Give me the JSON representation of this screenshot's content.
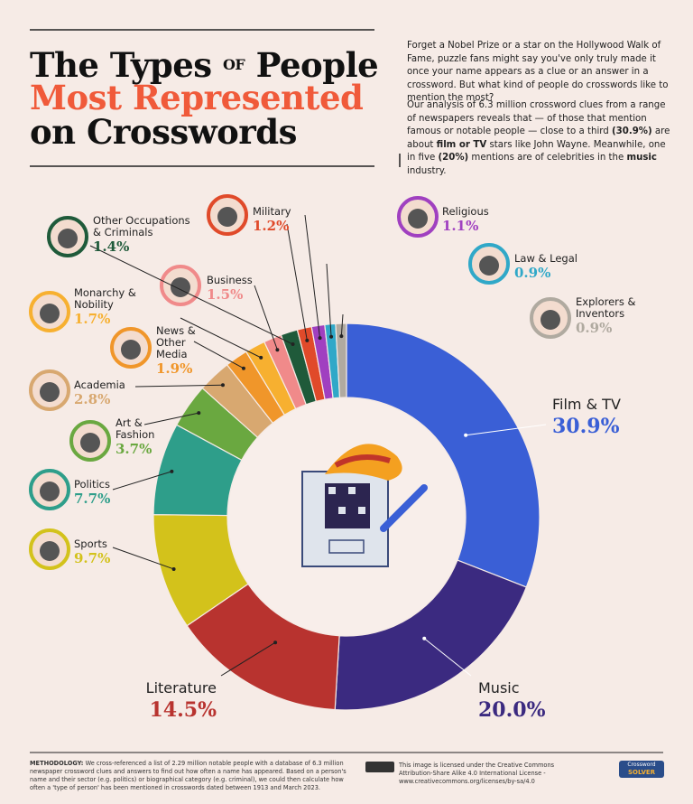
{
  "title": {
    "line1a": "The Types",
    "line1b": "OF",
    "line1c": "People",
    "line2": "Most Represented",
    "line3": "on Crosswords"
  },
  "intro": {
    "paragraph1": "Forget a Nobel Prize or a star on the Hollywood Walk of Fame, puzzle fans might say you've only truly made it once your name appears as a clue or an answer in a crossword. But what kind of people do crosswords like to mention the most?",
    "paragraph2": [
      "Our analysis of 6.3 million crossword clues from a range of newspapers reveals that — of those that mention famous or notable people — close to a third ",
      "(30.9%)",
      " are about ",
      "film or TV",
      " stars like John Wayne. Meanwhile, one in five ",
      "(20%)",
      " mentions are of celebrities in the ",
      "music",
      " industry."
    ]
  },
  "chart_data": {
    "type": "pie",
    "categories": [
      "Film & TV",
      "Music",
      "Literature",
      "Sports",
      "Politics",
      "Art & Fashion",
      "Academia",
      "News & Other Media",
      "Monarchy & Nobility",
      "Business",
      "Other Occupations & Criminals",
      "Military",
      "Religious",
      "Law & Legal",
      "Explorers & Inventors"
    ],
    "values": [
      30.9,
      20.0,
      14.5,
      9.7,
      7.7,
      3.7,
      2.8,
      1.9,
      1.7,
      1.5,
      1.4,
      1.2,
      1.1,
      0.9,
      0.9
    ],
    "value_labels": [
      "30.9%",
      "20.0%",
      "14.5%",
      "9.7%",
      "7.7%",
      "3.7%",
      "2.8%",
      "1.9%",
      "1.7%",
      "1.5%",
      "1.4%",
      "1.2%",
      "1.1%",
      "0.9%",
      "0.9%"
    ],
    "colors": [
      "#3a5fd6",
      "#3b2a80",
      "#b8332f",
      "#d3c21b",
      "#2e9e8a",
      "#6aa840",
      "#d8a870",
      "#f0962a",
      "#f7b030",
      "#f08a8a",
      "#1f5a3a",
      "#e04a2a",
      "#a040c0",
      "#30a8c8",
      "#b0aaa0"
    ],
    "donut": true
  },
  "footer": {
    "methodology_label": "METHODOLOGY:",
    "methodology": "We cross-referenced a list of 2.29 million notable people with a database of 6.3 million newspaper crossword clues and answers to find out how often a name has appeared. Based on a person's name and their sector (e.g. politics) or biographical category (e.g. criminal), we could then calculate how often a 'type of person' has been mentioned in crosswords dated between 1913 and March 2023.",
    "license": "This image is licensed under the Creative Commons Attribution-Share Alike 4.0 International License - www.creativecommons.org/licenses/by-sa/4.0",
    "logo_top": "Crossword",
    "logo_bottom": "SOLVER"
  }
}
